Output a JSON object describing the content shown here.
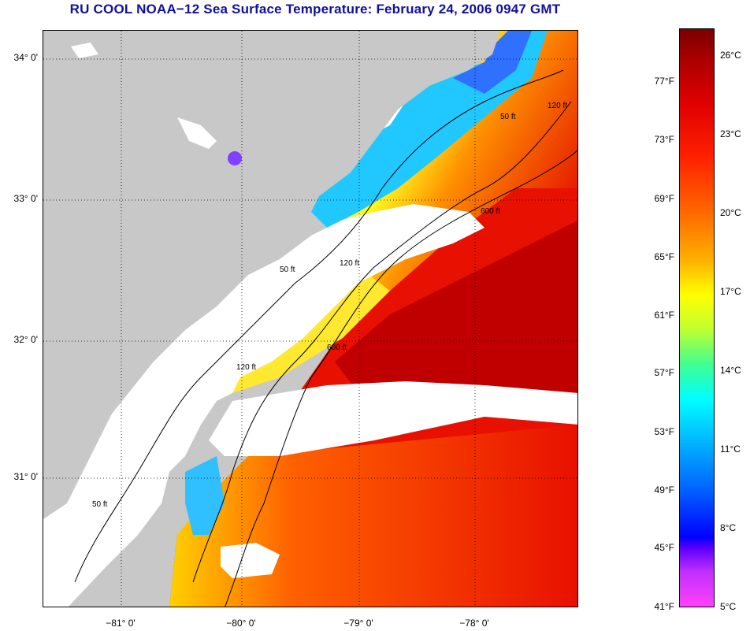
{
  "title": "RU COOL  NOAA−12  Sea Surface Temperature:  February 24, 2006 0947 GMT",
  "latitude_labels": [
    "34° 0'",
    "33° 0'",
    "32° 0'",
    "31° 0'"
  ],
  "longitude_labels": [
    "−81° 0'",
    "−80° 0'",
    "−79° 0'",
    "−78° 0'"
  ],
  "contour_labels": [
    "50 ft",
    "120 ft",
    "600 ft"
  ],
  "colorbar": {
    "fahrenheit_labels": [
      "77°F",
      "73°F",
      "69°F",
      "65°F",
      "61°F",
      "57°F",
      "53°F",
      "49°F",
      "45°F",
      "41°F"
    ],
    "celsius_labels": [
      "26°C",
      "23°C",
      "20°C",
      "17°C",
      "14°C",
      "11°C",
      "8°C",
      "5°C"
    ]
  },
  "colors": {
    "land": "#c8c8c8",
    "cloud": "#ffffff",
    "title": "#1010a0"
  }
}
